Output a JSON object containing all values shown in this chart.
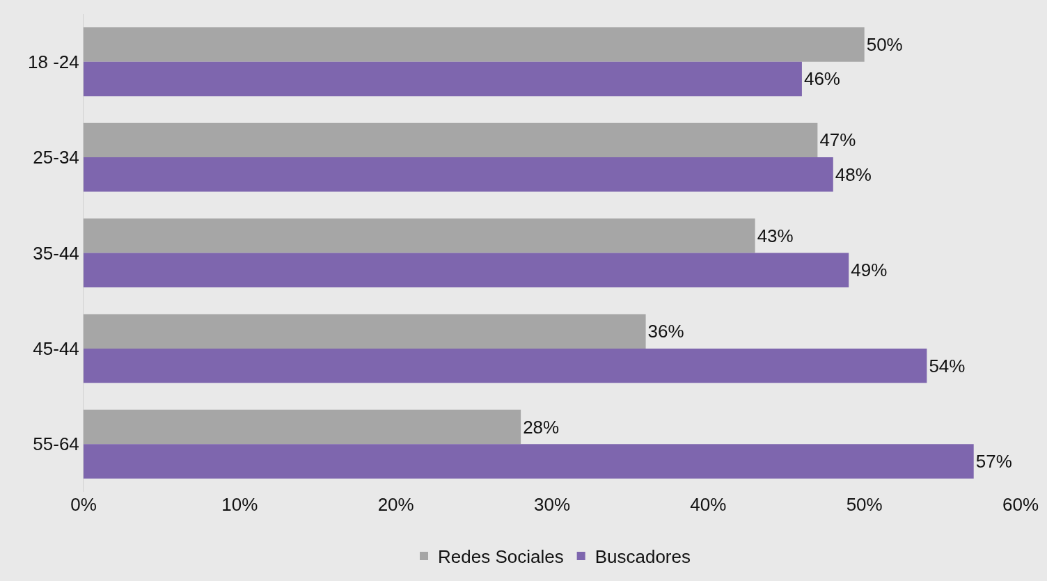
{
  "chart_data": {
    "type": "bar",
    "orientation": "horizontal",
    "categories": [
      "18 -24",
      "25-34",
      "35-44",
      "45-44",
      "55-64"
    ],
    "series": [
      {
        "name": "Redes Sociales",
        "color": "#a6a6a6",
        "values": [
          50,
          47,
          43,
          36,
          28
        ],
        "value_labels": [
          "50%",
          "47%",
          "43%",
          "36%",
          "28%"
        ]
      },
      {
        "name": "Buscadores",
        "color": "#7e66ae",
        "values": [
          46,
          48,
          49,
          54,
          57
        ],
        "value_labels": [
          "46%",
          "48%",
          "49%",
          "54%",
          "57%"
        ]
      }
    ],
    "xlim": [
      0,
      60
    ],
    "xticks": [
      {
        "value": 0,
        "label": "0%"
      },
      {
        "value": 10,
        "label": "10%"
      },
      {
        "value": 20,
        "label": "20%"
      },
      {
        "value": 30,
        "label": "30%"
      },
      {
        "value": 40,
        "label": "40%"
      },
      {
        "value": 50,
        "label": "50%"
      },
      {
        "value": 60,
        "label": "60%"
      }
    ],
    "grid": false,
    "legend": "bottom"
  }
}
